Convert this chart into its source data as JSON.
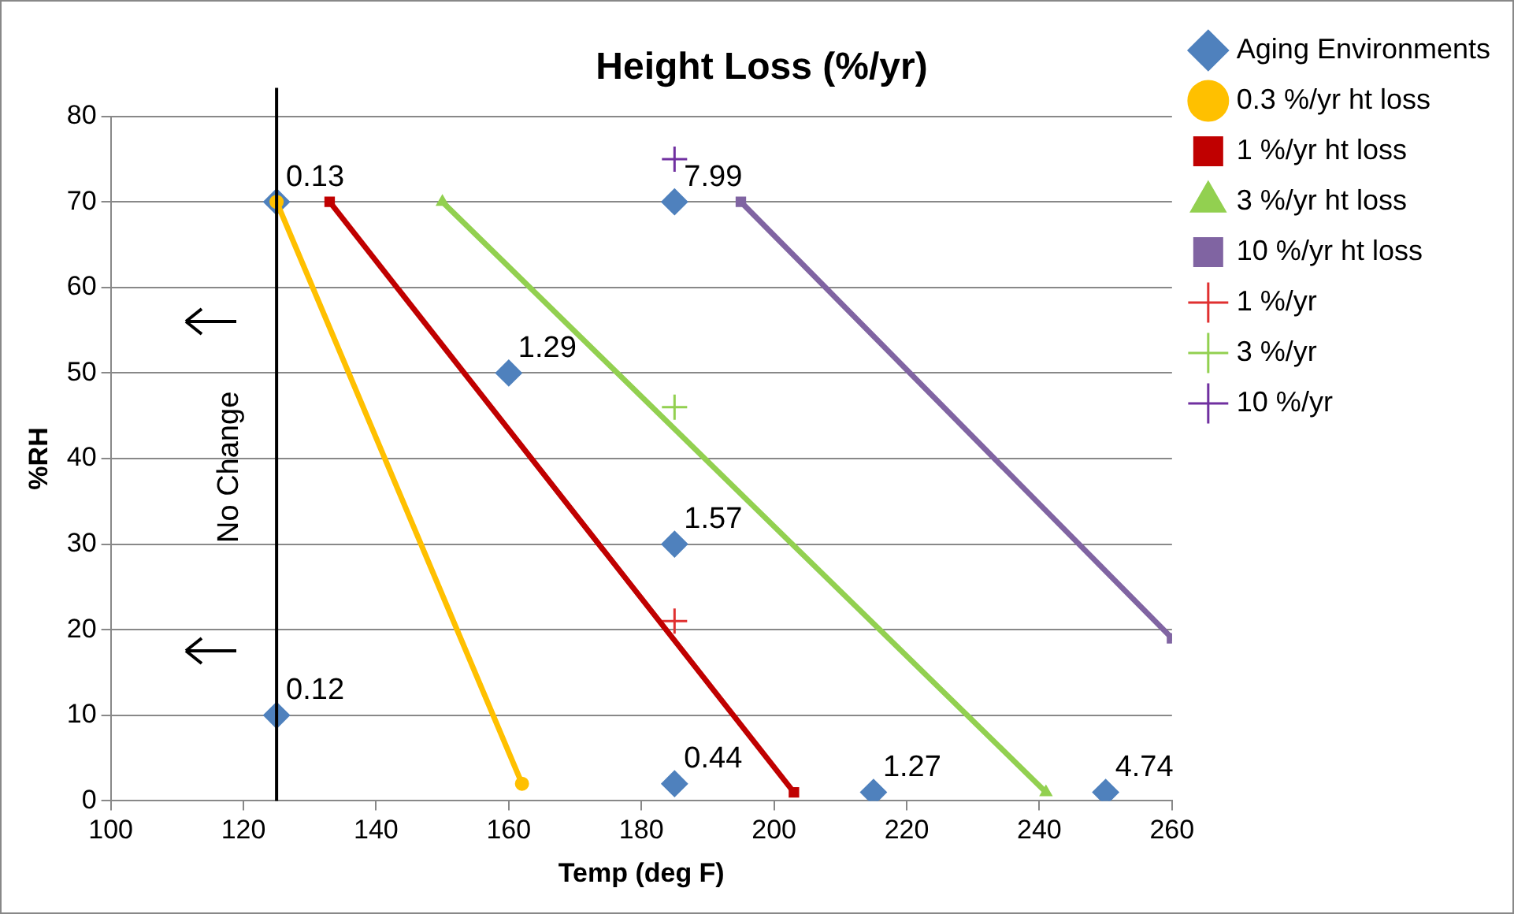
{
  "chart_data": {
    "type": "scatter",
    "title": "Height Loss (%/yr)",
    "xlabel": "Temp (deg F)",
    "ylabel": "%RH",
    "xlim": [
      100,
      260
    ],
    "xticks": [
      100,
      120,
      140,
      160,
      180,
      200,
      220,
      240,
      260
    ],
    "ylim": [
      0,
      80
    ],
    "yticks": [
      0,
      10,
      20,
      30,
      40,
      50,
      60,
      70,
      80
    ],
    "grid": "y",
    "legend": "right",
    "series": [
      {
        "name": "Aging Environments",
        "marker": "diamond",
        "color": "#4f81bd",
        "x": [
          125,
          160,
          185,
          185,
          125,
          185,
          215,
          250
        ],
        "values": [
          70,
          50,
          30,
          70,
          10,
          2,
          1,
          1
        ]
      },
      {
        "name": "0.3 %/yr ht loss",
        "type": "line",
        "marker": "circle",
        "color": "#ffc000",
        "x": [
          125,
          162
        ],
        "values": [
          70,
          2
        ]
      },
      {
        "name": "1 %/yr ht loss",
        "type": "line",
        "marker": "square",
        "color": "#c00000",
        "x": [
          133,
          203
        ],
        "values": [
          70,
          1
        ]
      },
      {
        "name": "3 %/yr ht loss",
        "type": "line",
        "marker": "triangle",
        "color": "#92d050",
        "x": [
          150,
          241
        ],
        "values": [
          70,
          1
        ]
      },
      {
        "name": "10 %/yr ht loss",
        "type": "line",
        "marker": "square",
        "color": "#8064a2",
        "x": [
          195,
          260
        ],
        "values": [
          70,
          19
        ]
      },
      {
        "name": "1 %/yr",
        "marker": "cross",
        "color": "#e03030",
        "x": [
          185
        ],
        "values": [
          21
        ]
      },
      {
        "name": "3 %/yr",
        "marker": "cross",
        "color": "#92d050",
        "x": [
          185
        ],
        "values": [
          46
        ]
      },
      {
        "name": "10 %/yr",
        "marker": "cross",
        "color": "#7030a0",
        "x": [
          185
        ],
        "values": [
          75
        ]
      }
    ],
    "ref_lines": [
      {
        "axis": "x",
        "value": 125,
        "color": "#000000"
      }
    ],
    "annotations": [
      "No Change",
      {
        "text": "0.13",
        "x": 125,
        "y": 70
      },
      {
        "text": "1.29",
        "x": 160,
        "y": 50
      },
      {
        "text": "1.57",
        "x": 185,
        "y": 30
      },
      {
        "text": "7.99",
        "x": 185,
        "y": 70
      },
      {
        "text": "0.12",
        "x": 125,
        "y": 10
      },
      {
        "text": "0.44",
        "x": 185,
        "y": 2
      },
      {
        "text": "1.27",
        "x": 215,
        "y": 1
      },
      {
        "text": "4.74",
        "x": 250,
        "y": 1
      }
    ]
  }
}
